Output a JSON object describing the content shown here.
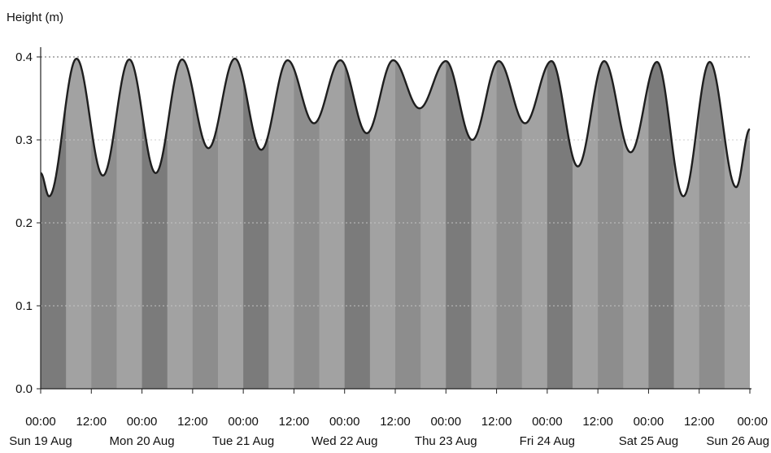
{
  "chart_data": {
    "type": "area",
    "title": "",
    "ylabel": "Height (m)",
    "xlabel": "",
    "ylim": [
      0.0,
      0.4
    ],
    "yticks": [
      {
        "value": 0.0,
        "label": "0.0"
      },
      {
        "value": 0.1,
        "label": "0.1"
      },
      {
        "value": 0.2,
        "label": "0.2"
      },
      {
        "value": 0.3,
        "label": "0.3"
      },
      {
        "value": 0.4,
        "label": "0.4"
      }
    ],
    "xlim": [
      "2018-08-19 00:00",
      "2018-08-26 00:00"
    ],
    "xticks": [
      {
        "t": "2018-08-19 00:00",
        "time": "00:00",
        "date": "Sun 19 Aug"
      },
      {
        "t": "2018-08-19 12:00",
        "time": "12:00",
        "date": ""
      },
      {
        "t": "2018-08-20 00:00",
        "time": "00:00",
        "date": "Mon 20 Aug"
      },
      {
        "t": "2018-08-20 12:00",
        "time": "12:00",
        "date": ""
      },
      {
        "t": "2018-08-21 00:00",
        "time": "00:00",
        "date": "Tue 21 Aug"
      },
      {
        "t": "2018-08-21 12:00",
        "time": "12:00",
        "date": ""
      },
      {
        "t": "2018-08-22 00:00",
        "time": "00:00",
        "date": "Wed 22 Aug"
      },
      {
        "t": "2018-08-22 12:00",
        "time": "12:00",
        "date": ""
      },
      {
        "t": "2018-08-23 00:00",
        "time": "00:00",
        "date": "Thu 23 Aug"
      },
      {
        "t": "2018-08-23 12:00",
        "time": "12:00",
        "date": ""
      },
      {
        "t": "2018-08-24 00:00",
        "time": "00:00",
        "date": "Fri 24 Aug"
      },
      {
        "t": "2018-08-24 12:00",
        "time": "12:00",
        "date": ""
      },
      {
        "t": "2018-08-25 00:00",
        "time": "00:00",
        "date": "Sat 25 Aug"
      },
      {
        "t": "2018-08-25 12:00",
        "time": "12:00",
        "date": ""
      },
      {
        "t": "2018-08-26 00:00",
        "time": "00:00",
        "date": "Sun 26 Aug"
      }
    ],
    "grid": true,
    "series": [
      {
        "values": [
          {
            "t": "2018-08-19 00:00",
            "y": 0.26
          },
          {
            "t": "2018-08-19 02:00",
            "y": 0.232
          },
          {
            "t": "2018-08-19 08:30",
            "y": 0.398
          },
          {
            "t": "2018-08-19 14:45",
            "y": 0.257
          },
          {
            "t": "2018-08-19 21:00",
            "y": 0.397
          },
          {
            "t": "2018-08-20 03:15",
            "y": 0.26
          },
          {
            "t": "2018-08-20 09:30",
            "y": 0.397
          },
          {
            "t": "2018-08-20 15:45",
            "y": 0.29
          },
          {
            "t": "2018-08-20 22:00",
            "y": 0.398
          },
          {
            "t": "2018-08-21 04:15",
            "y": 0.288
          },
          {
            "t": "2018-08-21 10:30",
            "y": 0.396
          },
          {
            "t": "2018-08-21 16:45",
            "y": 0.32
          },
          {
            "t": "2018-08-21 23:00",
            "y": 0.396
          },
          {
            "t": "2018-08-22 05:15",
            "y": 0.308
          },
          {
            "t": "2018-08-22 11:30",
            "y": 0.396
          },
          {
            "t": "2018-08-22 17:45",
            "y": 0.338
          },
          {
            "t": "2018-08-23 00:00",
            "y": 0.395
          },
          {
            "t": "2018-08-23 06:15",
            "y": 0.3
          },
          {
            "t": "2018-08-23 12:30",
            "y": 0.395
          },
          {
            "t": "2018-08-23 18:45",
            "y": 0.32
          },
          {
            "t": "2018-08-24 01:00",
            "y": 0.395
          },
          {
            "t": "2018-08-24 07:15",
            "y": 0.268
          },
          {
            "t": "2018-08-24 13:30",
            "y": 0.395
          },
          {
            "t": "2018-08-24 19:45",
            "y": 0.285
          },
          {
            "t": "2018-08-25 02:00",
            "y": 0.394
          },
          {
            "t": "2018-08-25 08:15",
            "y": 0.232
          },
          {
            "t": "2018-08-25 14:30",
            "y": 0.394
          },
          {
            "t": "2018-08-25 20:45",
            "y": 0.243
          },
          {
            "t": "2018-08-26 00:00",
            "y": 0.313
          }
        ]
      }
    ],
    "band_hours": 6,
    "colors": {
      "line": "#1e1e1e",
      "band_dark": "#7b7b7b",
      "band_mid": "#8d8d8d",
      "band_light": "#a2a2a2",
      "axis": "#222222",
      "grid": "#c8c8c8",
      "ref_line": "#555555"
    }
  }
}
